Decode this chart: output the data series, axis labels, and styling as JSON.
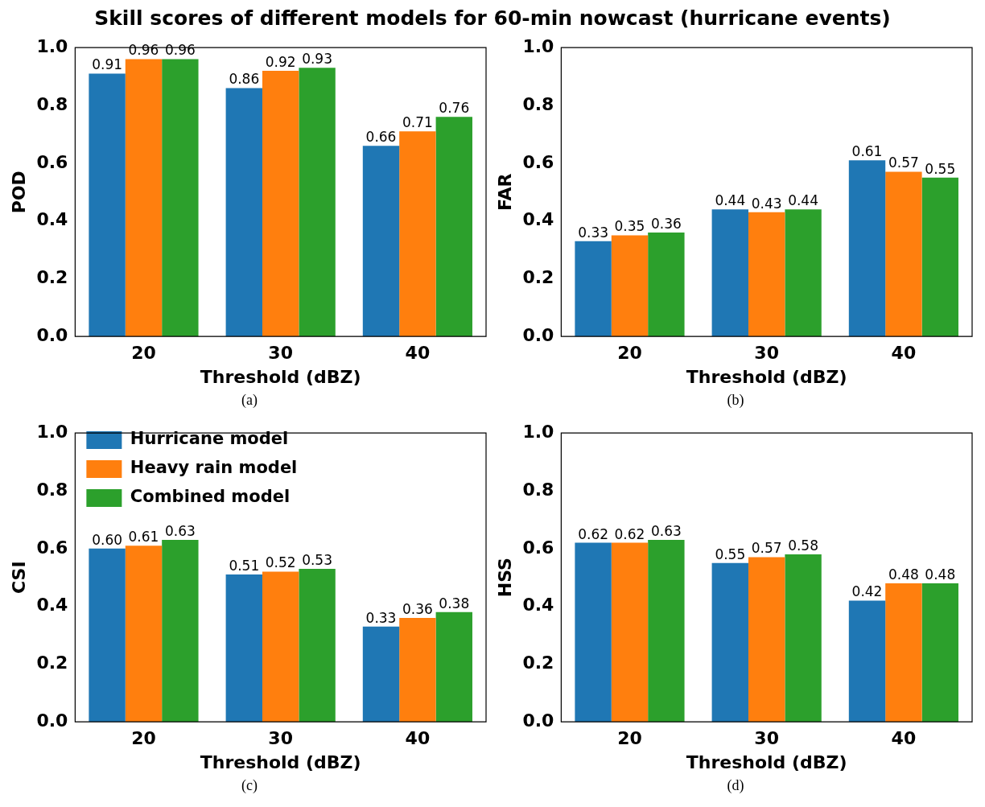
{
  "chart_data": [
    {
      "type": "bar",
      "title": "Skill scores of different models for 60-min nowcast (hurricane events)",
      "categories": [
        "20",
        "30",
        "40"
      ],
      "xlabel": "Threshold (dBZ)",
      "ylabel": "POD",
      "ylim": [
        0,
        1
      ],
      "yticks": [
        {
          "value": 0,
          "label": "0.0"
        },
        {
          "value": 0.2,
          "label": "0.2"
        },
        {
          "value": 0.4,
          "label": "0.4"
        },
        {
          "value": 0.6,
          "label": "0.6"
        },
        {
          "value": 0.8,
          "label": "0.8"
        },
        {
          "value": 1,
          "label": "1.0"
        }
      ],
      "grid": false,
      "legend": false,
      "annotations": [
        "(a)"
      ],
      "series": [
        {
          "color": "#1f77b4",
          "values": [
            0.91,
            0.86,
            0.66
          ],
          "value_labels": [
            "0.91",
            "0.86",
            "0.66"
          ]
        },
        {
          "color": "#ff7f0e",
          "values": [
            0.96,
            0.92,
            0.71
          ],
          "value_labels": [
            "0.96",
            "0.92",
            "0.71"
          ]
        },
        {
          "color": "#2ca02c",
          "values": [
            0.96,
            0.93,
            0.76
          ],
          "value_labels": [
            "0.96",
            "0.93",
            "0.76"
          ]
        }
      ]
    },
    {
      "type": "bar",
      "categories": [
        "20",
        "30",
        "40"
      ],
      "xlabel": "Threshold (dBZ)",
      "ylabel": "FAR",
      "ylim": [
        0,
        1
      ],
      "yticks": [
        {
          "value": 0,
          "label": "0.0"
        },
        {
          "value": 0.2,
          "label": "0.2"
        },
        {
          "value": 0.4,
          "label": "0.4"
        },
        {
          "value": 0.6,
          "label": "0.6"
        },
        {
          "value": 0.8,
          "label": "0.8"
        },
        {
          "value": 1,
          "label": "1.0"
        }
      ],
      "grid": false,
      "legend": false,
      "annotations": [
        "(b)"
      ],
      "series": [
        {
          "color": "#1f77b4",
          "values": [
            0.33,
            0.44,
            0.61
          ],
          "value_labels": [
            "0.33",
            "0.44",
            "0.61"
          ]
        },
        {
          "color": "#ff7f0e",
          "values": [
            0.35,
            0.43,
            0.57
          ],
          "value_labels": [
            "0.35",
            "0.43",
            "0.57"
          ]
        },
        {
          "color": "#2ca02c",
          "values": [
            0.36,
            0.44,
            0.55
          ],
          "value_labels": [
            "0.36",
            "0.44",
            "0.55"
          ]
        }
      ]
    },
    {
      "type": "bar",
      "categories": [
        "20",
        "30",
        "40"
      ],
      "xlabel": "Threshold (dBZ)",
      "ylabel": "CSI",
      "ylim": [
        0,
        1
      ],
      "yticks": [
        {
          "value": 0,
          "label": "0.0"
        },
        {
          "value": 0.2,
          "label": "0.2"
        },
        {
          "value": 0.4,
          "label": "0.4"
        },
        {
          "value": 0.6,
          "label": "0.6"
        },
        {
          "value": 0.8,
          "label": "0.8"
        },
        {
          "value": 1,
          "label": "1.0"
        }
      ],
      "grid": false,
      "legend": "top left",
      "annotations": [
        "(c)"
      ],
      "series": [
        {
          "name": "Hurricane model",
          "color": "#1f77b4",
          "values": [
            0.6,
            0.51,
            0.33
          ],
          "value_labels": [
            "0.60",
            "0.51",
            "0.33"
          ]
        },
        {
          "name": "Heavy rain model",
          "color": "#ff7f0e",
          "values": [
            0.61,
            0.52,
            0.36
          ],
          "value_labels": [
            "0.61",
            "0.52",
            "0.36"
          ]
        },
        {
          "name": "Combined model",
          "color": "#2ca02c",
          "values": [
            0.63,
            0.53,
            0.38
          ],
          "value_labels": [
            "0.63",
            "0.53",
            "0.38"
          ]
        }
      ]
    },
    {
      "type": "bar",
      "categories": [
        "20",
        "30",
        "40"
      ],
      "xlabel": "Threshold (dBZ)",
      "ylabel": "HSS",
      "ylim": [
        0,
        1
      ],
      "yticks": [
        {
          "value": 0,
          "label": "0.0"
        },
        {
          "value": 0.2,
          "label": "0.2"
        },
        {
          "value": 0.4,
          "label": "0.4"
        },
        {
          "value": 0.6,
          "label": "0.6"
        },
        {
          "value": 0.8,
          "label": "0.8"
        },
        {
          "value": 1,
          "label": "1.0"
        }
      ],
      "grid": false,
      "legend": false,
      "annotations": [
        "(d)"
      ],
      "series": [
        {
          "color": "#1f77b4",
          "values": [
            0.62,
            0.55,
            0.42
          ],
          "value_labels": [
            "0.62",
            "0.55",
            "0.42"
          ]
        },
        {
          "color": "#ff7f0e",
          "values": [
            0.62,
            0.57,
            0.48
          ],
          "value_labels": [
            "0.62",
            "0.57",
            "0.48"
          ]
        },
        {
          "color": "#2ca02c",
          "values": [
            0.63,
            0.58,
            0.48
          ],
          "value_labels": [
            "0.63",
            "0.58",
            "0.48"
          ]
        }
      ]
    }
  ]
}
